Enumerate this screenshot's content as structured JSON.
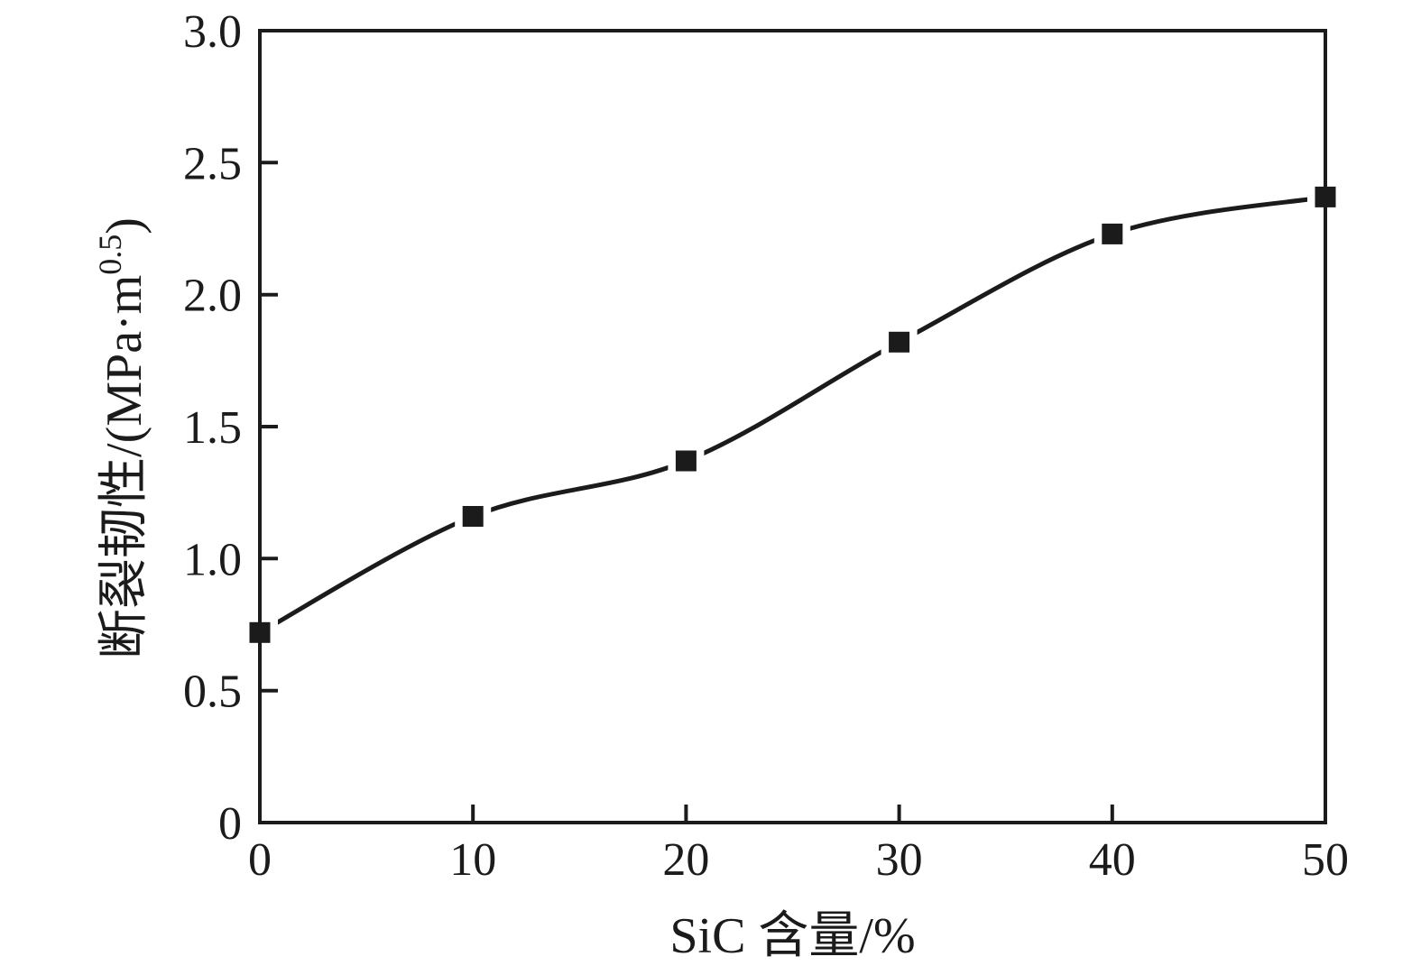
{
  "figure": {
    "background": "#ffffff",
    "ink_color": "#1b1b1b"
  },
  "chart_data": {
    "type": "line",
    "title": "",
    "xlabel": "SiC 含量/%",
    "ylabel_prefix": "断裂韧性/(MPa·m",
    "ylabel_superscript": "0.5",
    "ylabel_suffix": ")",
    "ylabel_full": "断裂韧性/(MPa·m^0.5)",
    "series": [
      {
        "name": "fracture-toughness",
        "x": [
          0,
          10,
          20,
          30,
          40,
          50
        ],
        "y": [
          0.72,
          1.16,
          1.37,
          1.82,
          2.23,
          2.37
        ],
        "marker": "filled-square",
        "line_style": "smooth-curve-with-gaps-at-markers",
        "color": "#1b1b1b"
      }
    ],
    "xlim": [
      0,
      50
    ],
    "ylim": [
      0,
      3.0
    ],
    "x_ticks": [
      0,
      10,
      20,
      30,
      40,
      50
    ],
    "x_tick_labels": [
      "0",
      "10",
      "20",
      "30",
      "40",
      "50"
    ],
    "y_ticks": [
      0,
      0.5,
      1.0,
      1.5,
      2.0,
      2.5,
      3.0
    ],
    "y_tick_labels": [
      "0",
      "0.5",
      "1.0",
      "1.5",
      "2.0",
      "2.5",
      "3.0"
    ],
    "tick_direction": "in",
    "grid": false,
    "legend": "none",
    "frame": "full-box"
  }
}
